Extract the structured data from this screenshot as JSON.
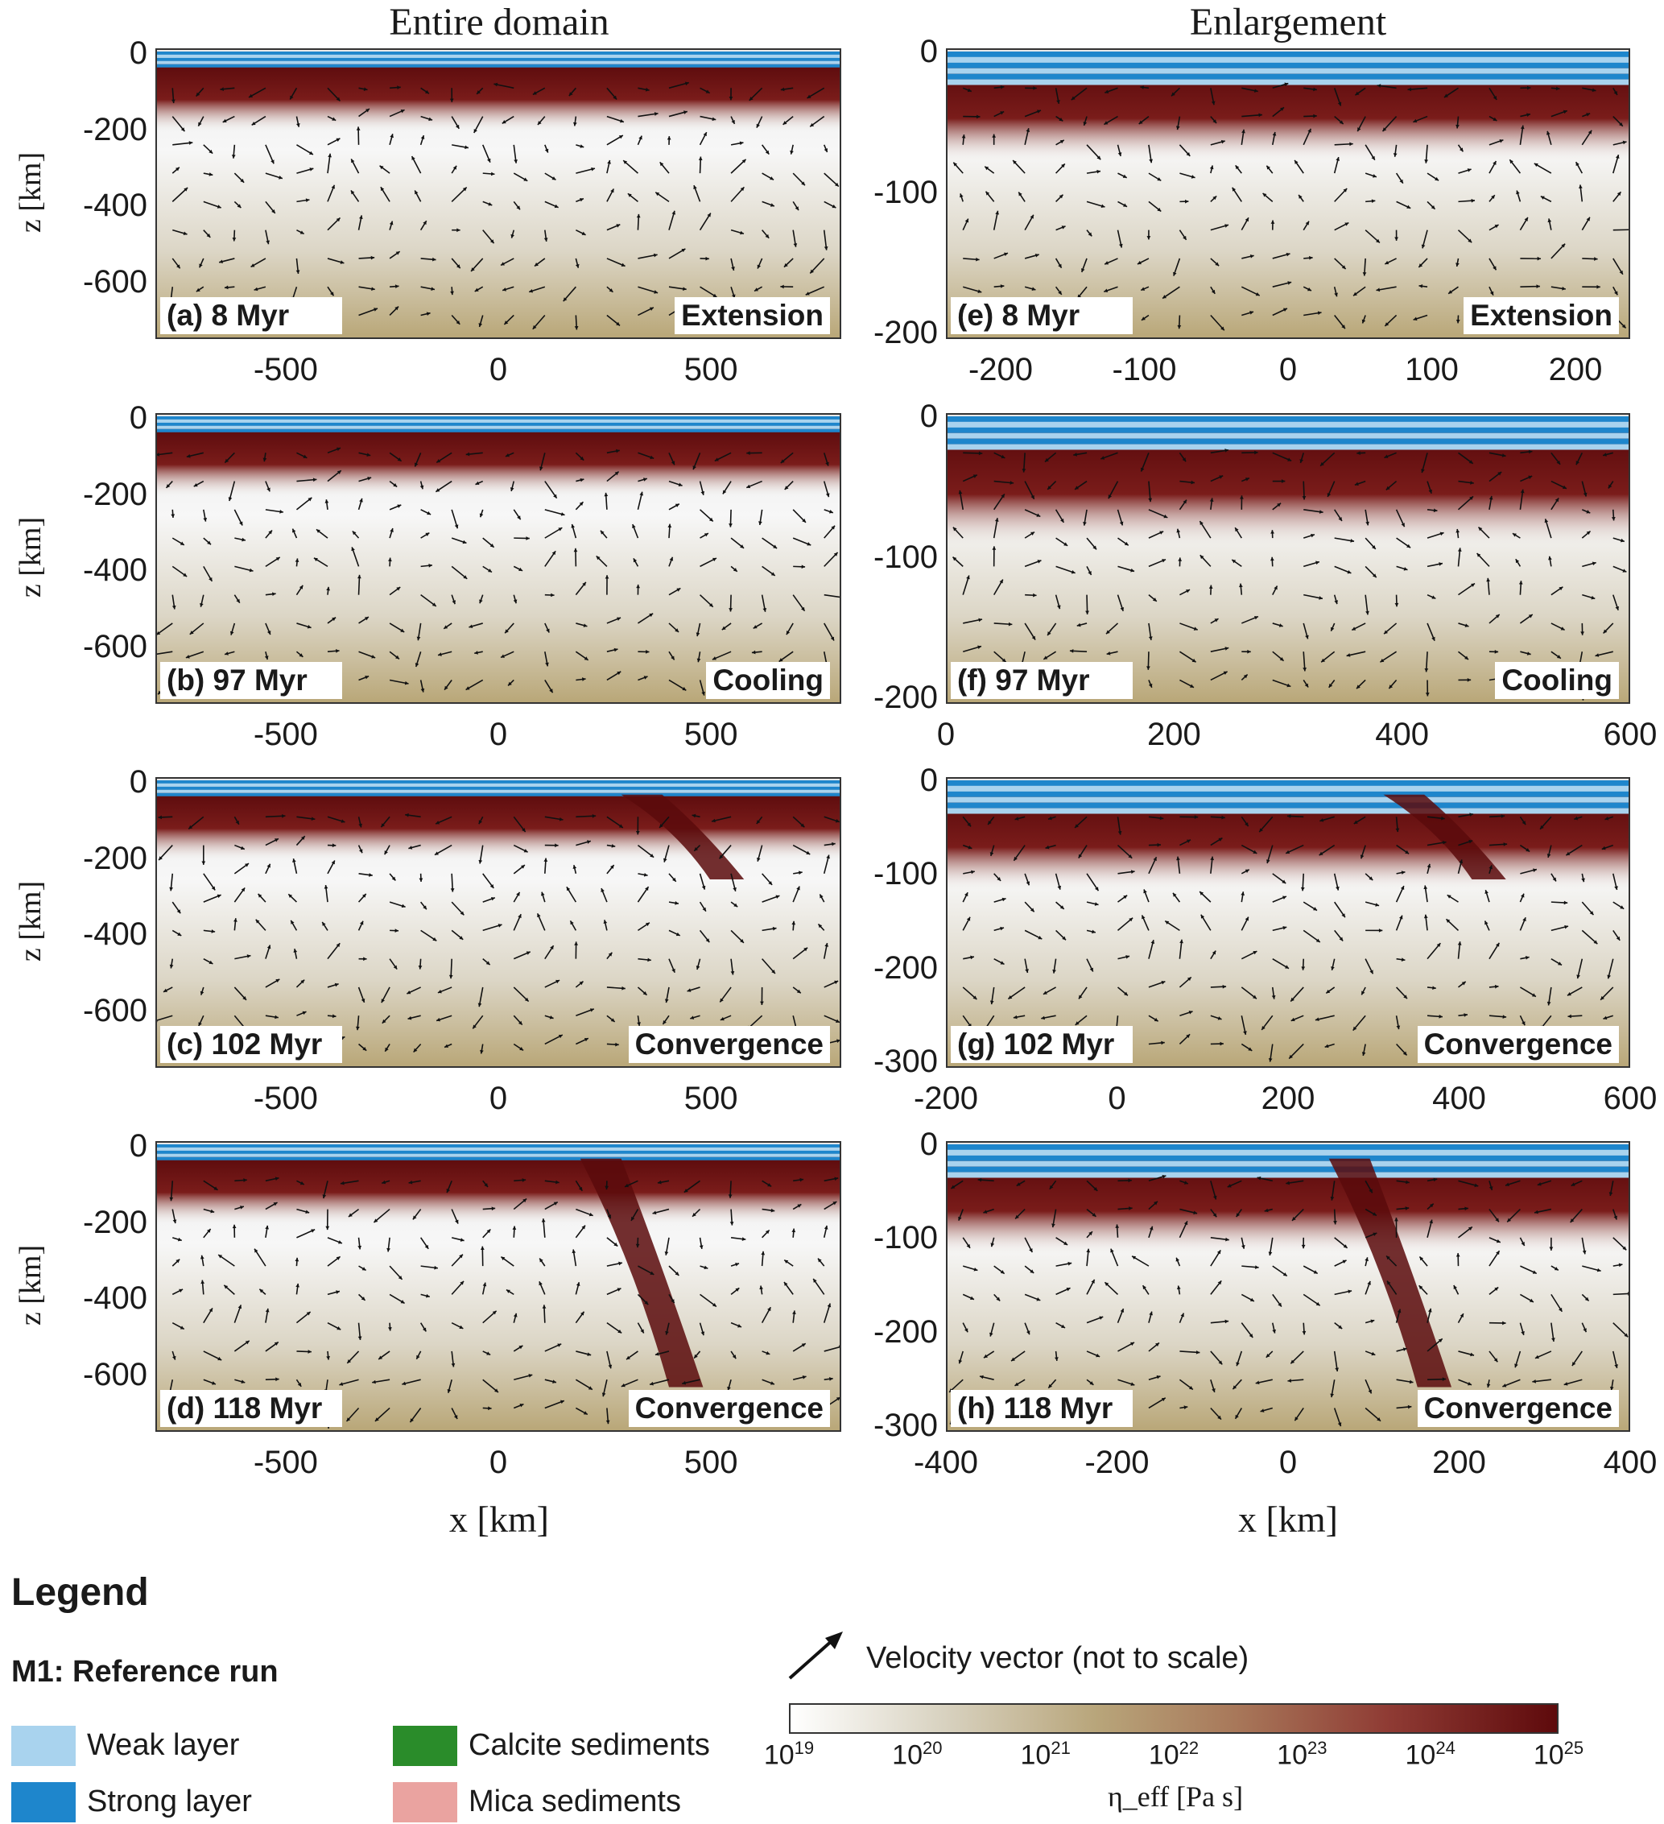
{
  "titles": {
    "left": "Entire domain",
    "right": "Enlargement"
  },
  "axis": {
    "ylabel": "z [km]",
    "xlabel": "x [km]"
  },
  "colors": {
    "weak_layer": "#a9d3ee",
    "strong_layer": "#1e86cc",
    "lithosphere": "#5a0a0c",
    "calcite": "#2a8c2a",
    "mica": "#eaa3a0"
  },
  "panels": [
    {
      "id": "a",
      "tag": "(a) 8 Myr",
      "phase": "Extension",
      "yticks": [
        "0",
        "-200",
        "-400",
        "-600"
      ],
      "xticks": [
        "-500",
        "0",
        "500"
      ]
    },
    {
      "id": "b",
      "tag": "(b) 97 Myr",
      "phase": "Cooling",
      "yticks": [
        "0",
        "-200",
        "-400",
        "-600"
      ],
      "xticks": [
        "-500",
        "0",
        "500"
      ]
    },
    {
      "id": "c",
      "tag": "(c) 102 Myr",
      "phase": "Convergence",
      "yticks": [
        "0",
        "-200",
        "-400",
        "-600"
      ],
      "xticks": [
        "-500",
        "0",
        "500"
      ]
    },
    {
      "id": "d",
      "tag": "(d) 118 Myr",
      "phase": "Convergence",
      "yticks": [
        "0",
        "-200",
        "-400",
        "-600"
      ],
      "xticks": [
        "-500",
        "0",
        "500"
      ]
    },
    {
      "id": "e",
      "tag": "(e) 8 Myr",
      "phase": "Extension",
      "yticks": [
        "0",
        "-100",
        "-200"
      ],
      "xticks": [
        "-200",
        "-100",
        "0",
        "100",
        "200"
      ]
    },
    {
      "id": "f",
      "tag": "(f) 97 Myr",
      "phase": "Cooling",
      "yticks": [
        "0",
        "-100",
        "-200"
      ],
      "xticks": [
        "0",
        "200",
        "400",
        "600"
      ]
    },
    {
      "id": "g",
      "tag": "(g) 102 Myr",
      "phase": "Convergence",
      "yticks": [
        "0",
        "-100",
        "-200",
        "-300"
      ],
      "xticks": [
        "-200",
        "0",
        "200",
        "400",
        "600"
      ]
    },
    {
      "id": "h",
      "tag": "(h) 118 Myr",
      "phase": "Convergence",
      "yticks": [
        "0",
        "-100",
        "-200",
        "-300"
      ],
      "xticks": [
        "-400",
        "-200",
        "0",
        "200",
        "400"
      ]
    }
  ],
  "legend": {
    "title": "Legend",
    "subtitle": "M1: Reference run",
    "items": [
      {
        "label": "Weak layer",
        "color": "#a9d3ee"
      },
      {
        "label": "Strong layer",
        "color": "#1e86cc"
      },
      {
        "label": "Calcite sediments",
        "color": "#2a8c2a"
      },
      {
        "label": "Mica sediments",
        "color": "#eaa3a0"
      }
    ],
    "velocity_label": "Velocity vector (not to scale)",
    "colorbar": {
      "base": "10",
      "exponents": [
        "19",
        "20",
        "21",
        "22",
        "23",
        "24",
        "25"
      ],
      "label": "η_eff [Pa s]"
    }
  }
}
